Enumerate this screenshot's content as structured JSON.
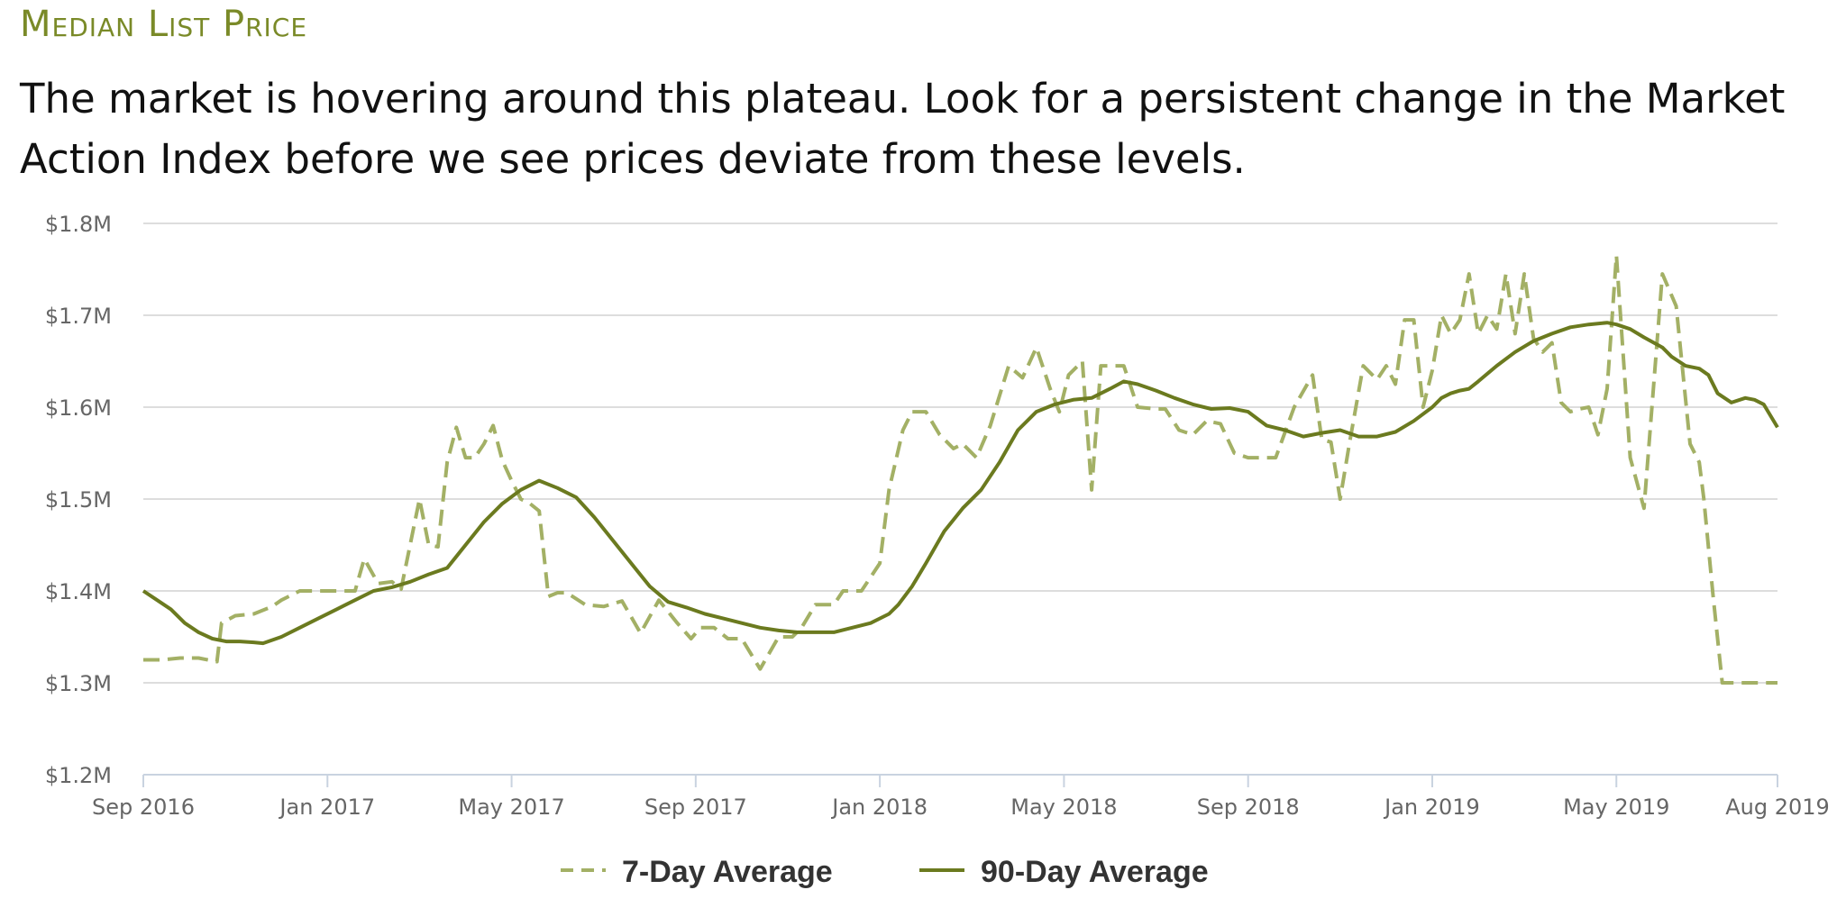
{
  "title": "Median List Price",
  "subtitle": "The market is hovering around this plateau. Look for a persistent change in the Market Action Index before we see prices deviate from these levels.",
  "colors": {
    "seven_day": "#a3b065",
    "ninety_day": "#6b7a1f",
    "title": "#7a8a28",
    "grid": "#dddddd"
  },
  "chart_data": {
    "type": "line",
    "title": "Median List Price",
    "xlabel": "",
    "ylabel": "",
    "ylim": [
      1.2,
      1.8
    ],
    "y_unit": "$M",
    "y_ticks": [
      {
        "value": 1.2,
        "label": "$1.2M"
      },
      {
        "value": 1.3,
        "label": "$1.3M"
      },
      {
        "value": 1.4,
        "label": "$1.4M"
      },
      {
        "value": 1.5,
        "label": "$1.5M"
      },
      {
        "value": 1.6,
        "label": "$1.6M"
      },
      {
        "value": 1.7,
        "label": "$1.7M"
      },
      {
        "value": 1.8,
        "label": "$1.8M"
      }
    ],
    "x_range_months": [
      0,
      35.5
    ],
    "x_ticks": [
      {
        "month": 0,
        "label": "Sep 2016"
      },
      {
        "month": 4,
        "label": "Jan 2017"
      },
      {
        "month": 8,
        "label": "May 2017"
      },
      {
        "month": 12,
        "label": "Sep 2017"
      },
      {
        "month": 16,
        "label": "Jan 2018"
      },
      {
        "month": 20,
        "label": "May 2018"
      },
      {
        "month": 24,
        "label": "Sep 2018"
      },
      {
        "month": 28,
        "label": "Jan 2019"
      },
      {
        "month": 32,
        "label": "May 2019"
      },
      {
        "month": 35.5,
        "label": "Aug 2019"
      }
    ],
    "series": [
      {
        "name": "7-Day Average",
        "style": "dashed",
        "x": [
          0,
          0.4,
          0.8,
          1.2,
          1.6,
          1.7,
          2.0,
          2.4,
          2.8,
          3.0,
          3.4,
          3.8,
          4.2,
          4.6,
          4.8,
          5.1,
          5.4,
          5.6,
          6.0,
          6.2,
          6.4,
          6.6,
          6.8,
          7.0,
          7.2,
          7.4,
          7.6,
          7.8,
          8.0,
          8.2,
          8.4,
          8.6,
          8.8,
          9.0,
          9.2,
          9.6,
          10.0,
          10.4,
          10.8,
          11.2,
          11.6,
          11.9,
          12.1,
          12.4,
          12.7,
          13.0,
          13.4,
          13.8,
          14.1,
          14.3,
          14.6,
          15.0,
          15.2,
          15.6,
          16.0,
          16.2,
          16.5,
          16.7,
          17.0,
          17.3,
          17.6,
          17.8,
          18.1,
          18.4,
          18.8,
          19.1,
          19.4,
          19.7,
          19.9,
          20.1,
          20.4,
          20.6,
          20.8,
          21.0,
          21.3,
          21.6,
          22.0,
          22.2,
          22.5,
          22.8,
          23.1,
          23.4,
          23.7,
          24.0,
          24.3,
          24.6,
          25.0,
          25.4,
          25.6,
          25.8,
          26.0,
          26.2,
          26.5,
          26.8,
          27.0,
          27.2,
          27.4,
          27.6,
          27.8,
          28.0,
          28.2,
          28.4,
          28.6,
          28.8,
          29.0,
          29.2,
          29.4,
          29.6,
          29.8,
          30.0,
          30.2,
          30.4,
          30.6,
          30.8,
          31.0,
          31.2,
          31.4,
          31.6,
          31.8,
          32.0,
          32.3,
          32.6,
          33.0,
          33.3,
          33.6,
          33.8,
          33.9,
          34.1,
          34.3,
          34.5,
          34.6,
          34.8,
          35.0,
          35.2,
          35.5
        ],
        "values": [
          1.325,
          1.325,
          1.327,
          1.327,
          1.323,
          1.365,
          1.373,
          1.375,
          1.383,
          1.39,
          1.4,
          1.4,
          1.4,
          1.4,
          1.435,
          1.408,
          1.41,
          1.402,
          1.5,
          1.45,
          1.448,
          1.54,
          1.578,
          1.545,
          1.545,
          1.56,
          1.58,
          1.542,
          1.52,
          1.5,
          1.495,
          1.487,
          1.394,
          1.398,
          1.398,
          1.385,
          1.383,
          1.389,
          1.354,
          1.39,
          1.365,
          1.348,
          1.36,
          1.36,
          1.348,
          1.348,
          1.315,
          1.35,
          1.35,
          1.36,
          1.385,
          1.385,
          1.4,
          1.4,
          1.43,
          1.51,
          1.575,
          1.595,
          1.595,
          1.57,
          1.555,
          1.56,
          1.545,
          1.58,
          1.645,
          1.632,
          1.665,
          1.62,
          1.595,
          1.635,
          1.65,
          1.51,
          1.645,
          1.645,
          1.645,
          1.6,
          1.598,
          1.598,
          1.575,
          1.57,
          1.585,
          1.582,
          1.55,
          1.545,
          1.545,
          1.545,
          1.6,
          1.635,
          1.565,
          1.562,
          1.5,
          1.56,
          1.645,
          1.63,
          1.645,
          1.625,
          1.695,
          1.695,
          1.6,
          1.64,
          1.7,
          1.68,
          1.695,
          1.745,
          1.68,
          1.7,
          1.685,
          1.745,
          1.68,
          1.745,
          1.675,
          1.66,
          1.67,
          1.605,
          1.595,
          1.598,
          1.6,
          1.57,
          1.62,
          1.765,
          1.545,
          1.49,
          1.745,
          1.71,
          1.56,
          1.54,
          1.5,
          1.395,
          1.3,
          1.3,
          1.3,
          1.3,
          1.3,
          1.3,
          1.3
        ]
      },
      {
        "name": "90-Day Average",
        "style": "solid",
        "x": [
          0,
          0.3,
          0.6,
          0.9,
          1.2,
          1.5,
          1.8,
          2.1,
          2.4,
          2.6,
          3.0,
          3.4,
          3.8,
          4.2,
          4.6,
          5.0,
          5.4,
          5.8,
          6.2,
          6.6,
          7.0,
          7.4,
          7.8,
          8.2,
          8.6,
          9.0,
          9.4,
          9.8,
          10.2,
          10.6,
          11.0,
          11.4,
          11.8,
          12.2,
          12.6,
          13.0,
          13.4,
          13.8,
          14.2,
          14.6,
          15.0,
          15.4,
          15.8,
          16.2,
          16.4,
          16.7,
          17.0,
          17.4,
          17.8,
          18.2,
          18.6,
          19.0,
          19.4,
          19.8,
          20.2,
          20.6,
          21.0,
          21.3,
          21.6,
          22.0,
          22.4,
          22.8,
          23.2,
          23.6,
          24.0,
          24.4,
          24.8,
          25.2,
          25.6,
          26.0,
          26.4,
          26.8,
          27.2,
          27.6,
          28.0,
          28.2,
          28.4,
          28.6,
          28.8,
          29.0,
          29.4,
          29.8,
          30.2,
          30.6,
          31.0,
          31.4,
          31.8,
          32.0,
          32.3,
          32.6,
          33.0,
          33.2,
          33.5,
          33.8,
          34.0,
          34.2,
          34.5,
          34.8,
          35.0,
          35.2,
          35.5
        ],
        "values": [
          1.4,
          1.39,
          1.38,
          1.365,
          1.355,
          1.348,
          1.345,
          1.345,
          1.344,
          1.343,
          1.35,
          1.36,
          1.37,
          1.38,
          1.39,
          1.4,
          1.404,
          1.41,
          1.418,
          1.425,
          1.45,
          1.475,
          1.495,
          1.51,
          1.52,
          1.512,
          1.502,
          1.48,
          1.455,
          1.43,
          1.405,
          1.388,
          1.382,
          1.375,
          1.37,
          1.365,
          1.36,
          1.357,
          1.355,
          1.355,
          1.355,
          1.36,
          1.365,
          1.375,
          1.385,
          1.405,
          1.43,
          1.465,
          1.49,
          1.51,
          1.54,
          1.575,
          1.595,
          1.603,
          1.608,
          1.61,
          1.62,
          1.628,
          1.625,
          1.618,
          1.61,
          1.603,
          1.598,
          1.599,
          1.595,
          1.58,
          1.575,
          1.568,
          1.572,
          1.575,
          1.568,
          1.568,
          1.573,
          1.585,
          1.6,
          1.61,
          1.615,
          1.618,
          1.62,
          1.628,
          1.645,
          1.66,
          1.672,
          1.68,
          1.687,
          1.69,
          1.692,
          1.69,
          1.685,
          1.676,
          1.665,
          1.655,
          1.645,
          1.642,
          1.635,
          1.615,
          1.605,
          1.61,
          1.608,
          1.603,
          1.578
        ]
      }
    ]
  }
}
